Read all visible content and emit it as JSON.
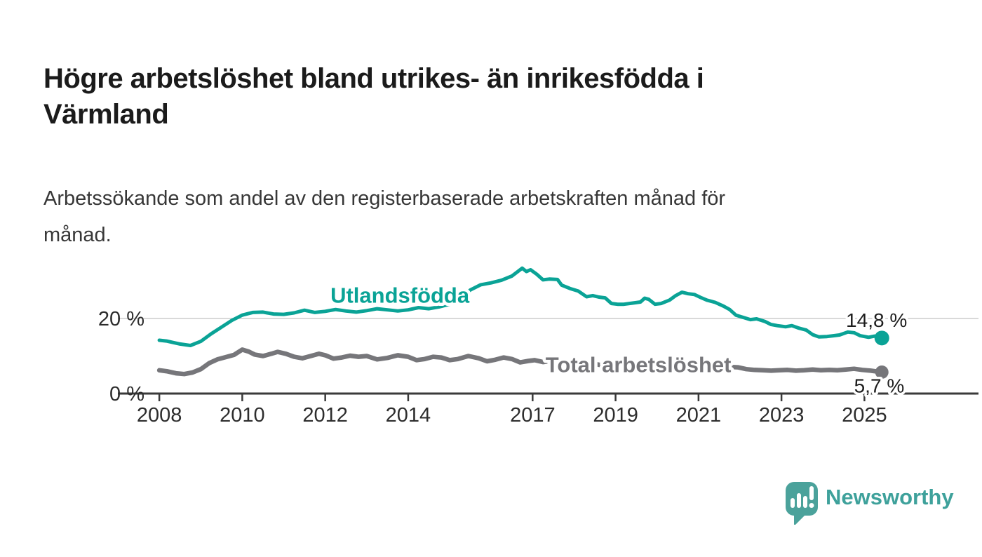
{
  "header": {
    "title": "Högre arbetslöshet bland utrikes- än inrikesfödda i\nVärmland",
    "subtitle": "Arbetssökande som andel av den registerbaserade arbetskraften månad för\nmånad."
  },
  "footer": {
    "brand": "Newsworthy",
    "brand_color": "#3ea19b",
    "logo_mark_color": "#4ba29b"
  },
  "chart_data": {
    "type": "line",
    "title": "Högre arbetslöshet bland utrikes- än inrikesfödda i Värmland",
    "subtitle": "Arbetssökande som andel av den registerbaserade arbetskraften månad för månad.",
    "x_domain": [
      2007,
      2027.75
    ],
    "x_ticks": [
      2008,
      2010,
      2012,
      2014,
      2017,
      2019,
      2021,
      2023,
      2025
    ],
    "x_tick_labels": [
      "2008",
      "2010",
      "2012",
      "2014",
      "2017",
      "2019",
      "2021",
      "2023",
      "2025"
    ],
    "y_axis_labels": [
      {
        "value": 20,
        "label": "20 %"
      },
      {
        "value": 0,
        "label": "0 %"
      }
    ],
    "y_gridline_value": 20,
    "grid": "horizontal-only",
    "legend_position": "inline-labels",
    "colors": {
      "utlandsfodda": "#0aa396",
      "total": "#76767a",
      "gridline": "#d9d9d9",
      "axis": "#3a3a3a"
    },
    "series": [
      {
        "name": "Utlandsfödda",
        "color": "#0aa396",
        "end_label": "14,8 %",
        "end_value": 14.8,
        "label_anchor": [
          2013.8,
          26.3
        ],
        "points": [
          [
            2008.0,
            14.2
          ],
          [
            2008.17,
            14.0
          ],
          [
            2008.33,
            13.6
          ],
          [
            2008.5,
            13.2
          ],
          [
            2008.75,
            12.8
          ],
          [
            2009.0,
            13.9
          ],
          [
            2009.25,
            15.9
          ],
          [
            2009.5,
            17.7
          ],
          [
            2009.75,
            19.5
          ],
          [
            2010.0,
            20.9
          ],
          [
            2010.25,
            21.6
          ],
          [
            2010.5,
            21.7
          ],
          [
            2010.75,
            21.2
          ],
          [
            2011.0,
            21.1
          ],
          [
            2011.25,
            21.5
          ],
          [
            2011.5,
            22.2
          ],
          [
            2011.75,
            21.6
          ],
          [
            2012.0,
            21.9
          ],
          [
            2012.25,
            22.4
          ],
          [
            2012.5,
            22.0
          ],
          [
            2012.75,
            21.7
          ],
          [
            2013.0,
            22.1
          ],
          [
            2013.25,
            22.6
          ],
          [
            2013.5,
            22.3
          ],
          [
            2013.75,
            22.0
          ],
          [
            2014.0,
            22.3
          ],
          [
            2014.25,
            22.9
          ],
          [
            2014.5,
            22.6
          ],
          [
            2014.75,
            23.1
          ],
          [
            2015.0,
            23.8
          ],
          [
            2015.25,
            25.2
          ],
          [
            2015.5,
            27.6
          ],
          [
            2015.75,
            29.0
          ],
          [
            2016.0,
            29.5
          ],
          [
            2016.25,
            30.2
          ],
          [
            2016.5,
            31.3
          ],
          [
            2016.75,
            33.4
          ],
          [
            2016.85,
            32.5
          ],
          [
            2016.95,
            33.0
          ],
          [
            2017.1,
            31.8
          ],
          [
            2017.25,
            30.3
          ],
          [
            2017.4,
            30.5
          ],
          [
            2017.6,
            30.4
          ],
          [
            2017.7,
            28.9
          ],
          [
            2017.9,
            28.0
          ],
          [
            2018.1,
            27.3
          ],
          [
            2018.3,
            25.8
          ],
          [
            2018.45,
            26.1
          ],
          [
            2018.6,
            25.7
          ],
          [
            2018.75,
            25.5
          ],
          [
            2018.9,
            24.0
          ],
          [
            2019.05,
            23.8
          ],
          [
            2019.2,
            23.8
          ],
          [
            2019.4,
            24.1
          ],
          [
            2019.6,
            24.4
          ],
          [
            2019.7,
            25.4
          ],
          [
            2019.8,
            25.1
          ],
          [
            2019.95,
            23.8
          ],
          [
            2020.1,
            24.0
          ],
          [
            2020.3,
            24.9
          ],
          [
            2020.45,
            26.1
          ],
          [
            2020.6,
            27.0
          ],
          [
            2020.75,
            26.6
          ],
          [
            2020.9,
            26.4
          ],
          [
            2021.05,
            25.6
          ],
          [
            2021.2,
            24.9
          ],
          [
            2021.4,
            24.3
          ],
          [
            2021.6,
            23.3
          ],
          [
            2021.75,
            22.4
          ],
          [
            2021.9,
            20.9
          ],
          [
            2022.1,
            20.2
          ],
          [
            2022.25,
            19.7
          ],
          [
            2022.4,
            19.9
          ],
          [
            2022.6,
            19.2
          ],
          [
            2022.75,
            18.4
          ],
          [
            2022.9,
            18.1
          ],
          [
            2023.1,
            17.8
          ],
          [
            2023.25,
            18.1
          ],
          [
            2023.4,
            17.5
          ],
          [
            2023.6,
            16.9
          ],
          [
            2023.75,
            15.7
          ],
          [
            2023.9,
            15.1
          ],
          [
            2024.1,
            15.2
          ],
          [
            2024.25,
            15.4
          ],
          [
            2024.4,
            15.6
          ],
          [
            2024.6,
            16.4
          ],
          [
            2024.75,
            16.2
          ],
          [
            2024.9,
            15.4
          ],
          [
            2025.1,
            15.0
          ],
          [
            2025.25,
            15.3
          ],
          [
            2025.42,
            14.8
          ]
        ]
      },
      {
        "name": "Total arbetslöshet",
        "color": "#76767a",
        "end_label": "5,7 %",
        "end_value": 5.7,
        "label_anchor": [
          2019.55,
          7.8
        ],
        "points": [
          [
            2008.0,
            6.2
          ],
          [
            2008.2,
            5.9
          ],
          [
            2008.4,
            5.4
          ],
          [
            2008.6,
            5.2
          ],
          [
            2008.8,
            5.6
          ],
          [
            2009.0,
            6.5
          ],
          [
            2009.2,
            8.1
          ],
          [
            2009.4,
            9.1
          ],
          [
            2009.6,
            9.7
          ],
          [
            2009.8,
            10.3
          ],
          [
            2010.0,
            11.7
          ],
          [
            2010.15,
            11.2
          ],
          [
            2010.3,
            10.4
          ],
          [
            2010.5,
            10.0
          ],
          [
            2010.7,
            10.6
          ],
          [
            2010.85,
            11.1
          ],
          [
            2011.05,
            10.6
          ],
          [
            2011.25,
            9.8
          ],
          [
            2011.45,
            9.4
          ],
          [
            2011.65,
            10.0
          ],
          [
            2011.85,
            10.6
          ],
          [
            2012.0,
            10.2
          ],
          [
            2012.2,
            9.3
          ],
          [
            2012.4,
            9.6
          ],
          [
            2012.6,
            10.1
          ],
          [
            2012.8,
            9.8
          ],
          [
            2013.0,
            10.0
          ],
          [
            2013.25,
            9.1
          ],
          [
            2013.5,
            9.5
          ],
          [
            2013.75,
            10.2
          ],
          [
            2014.0,
            9.8
          ],
          [
            2014.2,
            8.9
          ],
          [
            2014.4,
            9.2
          ],
          [
            2014.6,
            9.8
          ],
          [
            2014.8,
            9.6
          ],
          [
            2015.0,
            8.9
          ],
          [
            2015.2,
            9.2
          ],
          [
            2015.45,
            10.0
          ],
          [
            2015.7,
            9.4
          ],
          [
            2015.9,
            8.6
          ],
          [
            2016.1,
            9.0
          ],
          [
            2016.3,
            9.6
          ],
          [
            2016.5,
            9.2
          ],
          [
            2016.7,
            8.3
          ],
          [
            2016.9,
            8.7
          ],
          [
            2017.05,
            8.9
          ],
          [
            2017.25,
            8.4
          ],
          [
            2017.45,
            8.7
          ],
          [
            2017.65,
            8.2
          ],
          [
            2017.85,
            7.9
          ],
          [
            2018.05,
            8.1
          ],
          [
            2018.3,
            7.5
          ],
          [
            2018.55,
            7.8
          ],
          [
            2018.8,
            7.2
          ],
          [
            2019.05,
            7.4
          ],
          [
            2019.3,
            7.6
          ],
          [
            2019.55,
            7.3
          ],
          [
            2019.8,
            7.0
          ],
          [
            2020.05,
            7.5
          ],
          [
            2020.3,
            8.2
          ],
          [
            2020.5,
            8.4
          ],
          [
            2020.75,
            8.1
          ],
          [
            2021.0,
            7.8
          ],
          [
            2021.25,
            7.5
          ],
          [
            2021.5,
            7.2
          ],
          [
            2021.75,
            7.1
          ],
          [
            2021.95,
            7.0
          ],
          [
            2022.15,
            6.5
          ],
          [
            2022.35,
            6.3
          ],
          [
            2022.55,
            6.2
          ],
          [
            2022.75,
            6.1
          ],
          [
            2022.95,
            6.2
          ],
          [
            2023.15,
            6.3
          ],
          [
            2023.35,
            6.1
          ],
          [
            2023.55,
            6.2
          ],
          [
            2023.75,
            6.4
          ],
          [
            2023.95,
            6.2
          ],
          [
            2024.15,
            6.3
          ],
          [
            2024.35,
            6.2
          ],
          [
            2024.55,
            6.4
          ],
          [
            2024.75,
            6.6
          ],
          [
            2024.95,
            6.3
          ],
          [
            2025.15,
            6.1
          ],
          [
            2025.42,
            5.7
          ]
        ]
      }
    ]
  }
}
